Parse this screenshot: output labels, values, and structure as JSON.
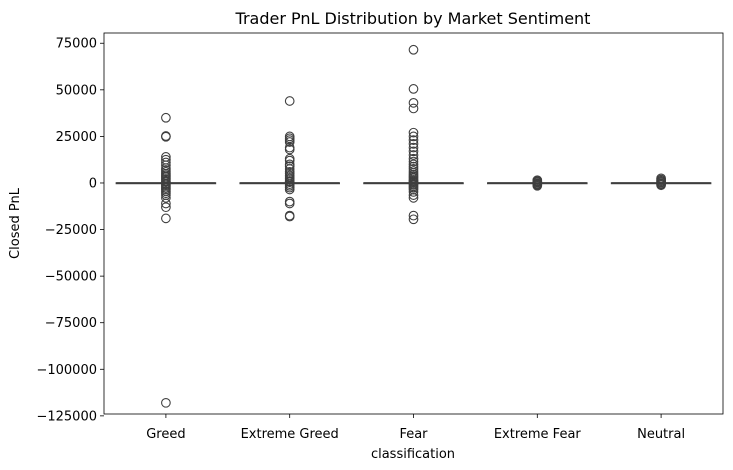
{
  "chart_data": {
    "type": "box",
    "title": "Trader PnL Distribution by Market Sentiment",
    "xlabel": "classification",
    "ylabel": "Closed PnL",
    "categories": [
      "Greed",
      "Extreme Greed",
      "Fear",
      "Extreme Fear",
      "Neutral"
    ],
    "ylim": [
      -124000,
      80500
    ],
    "yticks": [
      75000,
      50000,
      25000,
      0,
      -25000,
      -50000,
      -75000,
      -100000,
      -125000
    ],
    "ytick_labels": [
      "75000",
      "50000",
      "25000",
      "0",
      "−25000",
      "−50000",
      "−75000",
      "−100000",
      "−125000"
    ],
    "grid": false,
    "series": [
      {
        "category": "Greed",
        "q1": 0,
        "median": 0,
        "q3": 0,
        "whisker_low": 0,
        "whisker_high": 0,
        "outliers": [
          35000,
          25200,
          24800,
          14000,
          12500,
          11000,
          9500,
          8000,
          7000,
          6000,
          5000,
          4200,
          3400,
          2600,
          1800,
          1000,
          500,
          -500,
          -1200,
          -2000,
          -2800,
          -3600,
          -4500,
          -5500,
          -6500,
          -8000,
          -11000,
          -13000,
          -19000,
          -118000
        ]
      },
      {
        "category": "Extreme Greed",
        "q1": 0,
        "median": 0,
        "q3": 0,
        "whisker_low": 0,
        "whisker_high": 0,
        "outliers": [
          44000,
          25000,
          24000,
          23000,
          22000,
          19000,
          18000,
          13000,
          12000,
          10000,
          9000,
          7500,
          6000,
          5000,
          4000,
          3200,
          2400,
          1600,
          800,
          400,
          -600,
          -1500,
          -2500,
          -3500,
          -10000,
          -11000,
          -17500,
          -18000
        ]
      },
      {
        "category": "Fear",
        "q1": 0,
        "median": 0,
        "q3": 0,
        "whisker_low": 0,
        "whisker_high": 0,
        "outliers": [
          71500,
          50500,
          43000,
          40000,
          27000,
          25000,
          23000,
          21000,
          19000,
          17000,
          15000,
          13000,
          11500,
          10000,
          8800,
          7600,
          6400,
          5400,
          4400,
          3600,
          2800,
          2000,
          1300,
          700,
          300,
          -400,
          -1000,
          -1800,
          -2600,
          -3600,
          -4800,
          -6500,
          -8000,
          -17500,
          -19500
        ]
      },
      {
        "category": "Extreme Fear",
        "q1": 0,
        "median": 0,
        "q3": 0,
        "whisker_low": 0,
        "whisker_high": 0,
        "outliers": [
          1500,
          1000,
          600,
          300,
          -300,
          -600,
          -1000,
          -1500
        ]
      },
      {
        "category": "Neutral",
        "q1": 0,
        "median": 0,
        "q3": 0,
        "whisker_low": 0,
        "whisker_high": 0,
        "outliers": [
          2500,
          1800,
          1200,
          700,
          300,
          -300,
          -700,
          -1200
        ]
      }
    ]
  }
}
